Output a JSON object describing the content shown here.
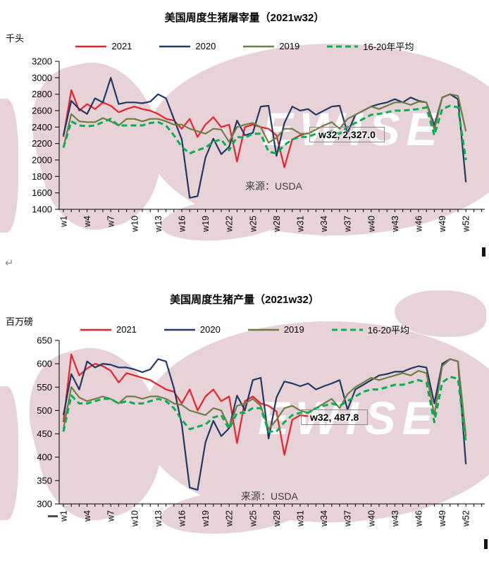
{
  "page": {
    "return_mark": "↵"
  },
  "watermark": {
    "text": "EWISE",
    "color": "#e7d2d8"
  },
  "chart_data": [
    {
      "type": "line",
      "title": "美国周度生猪屠宰量（2021w32）",
      "unit_label": "千头",
      "source_note": "来源：USDA",
      "callout": "w32, 2,327.0",
      "legend_position": "top",
      "grid": false,
      "ylim": [
        1400,
        3200
      ],
      "ystep": 200,
      "x_weeks": 52,
      "x_axis_labels": [
        "w1",
        "w4",
        "w7",
        "w10",
        "w13",
        "w16",
        "w19",
        "w22",
        "w25",
        "w28",
        "w31",
        "w34",
        "w37",
        "w40",
        "w43",
        "w46",
        "w49",
        "w52"
      ],
      "series": [
        {
          "name": "2021",
          "color": "#e8222a",
          "style": "solid",
          "values": [
            2280,
            2850,
            2600,
            2680,
            2620,
            2700,
            2660,
            2580,
            2620,
            2650,
            2620,
            2600,
            2560,
            2500,
            2480,
            2380,
            2500,
            2280,
            2430,
            2520,
            2400,
            2430,
            1980,
            2400,
            2430,
            2400,
            2380,
            2300,
            1910,
            2250,
            2300,
            2327
          ]
        },
        {
          "name": "2020",
          "color": "#1f3864",
          "style": "solid",
          "values": [
            2300,
            2720,
            2620,
            2560,
            2750,
            2700,
            3000,
            2680,
            2700,
            2700,
            2690,
            2710,
            2800,
            2750,
            2500,
            2250,
            1540,
            1560,
            2030,
            2260,
            2070,
            2160,
            2480,
            2300,
            2330,
            2650,
            2660,
            2050,
            2450,
            2650,
            2600,
            2620,
            2550,
            2600,
            2650,
            2660,
            2330,
            2550,
            2600,
            2650,
            2680,
            2700,
            2740,
            2700,
            2760,
            2720,
            2700,
            2420,
            2760,
            2800,
            2740,
            1730
          ]
        },
        {
          "name": "2019",
          "color": "#6e7d42",
          "style": "solid",
          "values": [
            2150,
            2560,
            2470,
            2460,
            2460,
            2510,
            2470,
            2420,
            2500,
            2500,
            2470,
            2500,
            2500,
            2470,
            2430,
            2430,
            2380,
            2350,
            2320,
            2380,
            2370,
            2220,
            2400,
            2430,
            2450,
            2400,
            2210,
            2270,
            2380,
            2380,
            2320,
            2320,
            2370,
            2420,
            2460,
            2380,
            2500,
            2550,
            2600,
            2650,
            2620,
            2660,
            2700,
            2700,
            2670,
            2710,
            2700,
            2370,
            2760,
            2800,
            2780,
            2350
          ]
        },
        {
          "name": "16-20年平均",
          "color": "#00b050",
          "style": "dashed",
          "values": [
            2150,
            2470,
            2420,
            2410,
            2420,
            2460,
            2500,
            2420,
            2420,
            2420,
            2420,
            2450,
            2460,
            2420,
            2300,
            2160,
            2080,
            2120,
            2150,
            2220,
            2250,
            2120,
            2280,
            2270,
            2320,
            2320,
            2100,
            2080,
            2180,
            2250,
            2280,
            2280,
            2320,
            2320,
            2350,
            2320,
            2400,
            2450,
            2500,
            2550,
            2560,
            2580,
            2600,
            2600,
            2610,
            2620,
            2640,
            2300,
            2620,
            2660,
            2640,
            2000
          ]
        }
      ]
    },
    {
      "type": "line",
      "title": "美国周度生猪产量（2021w32）",
      "unit_label": "百万磅",
      "source_note": "来源：USDA",
      "callout": "w32, 487.8",
      "legend_position": "top",
      "grid": false,
      "ylim": [
        300,
        650
      ],
      "ystep": 50,
      "x_weeks": 52,
      "x_axis_labels": [
        "w1",
        "w4",
        "w7",
        "w10",
        "w13",
        "w16",
        "w19",
        "w22",
        "w25",
        "w28",
        "w31",
        "w34",
        "w37",
        "w40",
        "w43",
        "w46",
        "w49",
        "w52"
      ],
      "series": [
        {
          "name": "2021",
          "color": "#e8222a",
          "style": "solid",
          "values": [
            475,
            620,
            575,
            590,
            600,
            595,
            585,
            560,
            580,
            575,
            570,
            565,
            555,
            545,
            540,
            515,
            545,
            500,
            530,
            545,
            520,
            530,
            430,
            520,
            530,
            515,
            510,
            498,
            405,
            480,
            490,
            487.8
          ]
        },
        {
          "name": "2020",
          "color": "#1f3864",
          "style": "solid",
          "values": [
            490,
            578,
            545,
            605,
            592,
            600,
            598,
            592,
            592,
            588,
            582,
            588,
            610,
            605,
            548,
            470,
            335,
            330,
            432,
            478,
            445,
            462,
            532,
            500,
            565,
            570,
            440,
            528,
            562,
            558,
            552,
            558,
            545,
            552,
            558,
            565,
            502,
            545,
            555,
            565,
            575,
            578,
            583,
            583,
            590,
            595,
            592,
            515,
            600,
            610,
            605,
            385
          ]
        },
        {
          "name": "2019",
          "color": "#6e7d42",
          "style": "solid",
          "values": [
            460,
            550,
            528,
            520,
            525,
            530,
            525,
            515,
            530,
            530,
            525,
            530,
            530,
            525,
            515,
            512,
            500,
            495,
            490,
            505,
            500,
            465,
            510,
            515,
            525,
            510,
            460,
            480,
            505,
            510,
            500,
            495,
            505,
            515,
            525,
            505,
            535,
            550,
            560,
            570,
            565,
            570,
            575,
            580,
            575,
            585,
            580,
            490,
            595,
            610,
            605,
            445
          ]
        },
        {
          "name": "16-20平均",
          "color": "#00b050",
          "style": "dashed",
          "values": [
            455,
            532,
            515,
            515,
            520,
            525,
            525,
            515,
            520,
            515,
            515,
            520,
            525,
            520,
            505,
            480,
            460,
            465,
            470,
            485,
            490,
            460,
            495,
            495,
            505,
            505,
            455,
            455,
            475,
            490,
            495,
            495,
            505,
            510,
            515,
            510,
            520,
            530,
            540,
            545,
            545,
            550,
            555,
            555,
            560,
            565,
            560,
            475,
            560,
            572,
            568,
            430
          ]
        }
      ]
    }
  ]
}
